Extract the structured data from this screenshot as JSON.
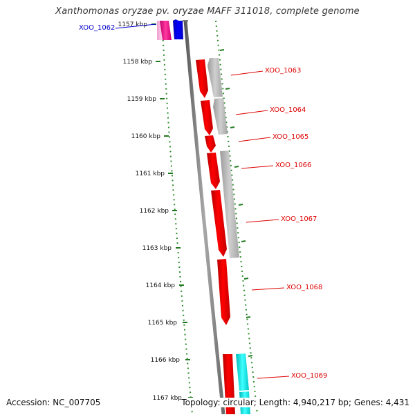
{
  "title": "Xanthomonas oryzae pv. oryzae MAFF 311018, complete genome",
  "ticks": [
    {
      "label": "1157 kbp"
    },
    {
      "label": "1158 kbp"
    },
    {
      "label": "1159 kbp"
    },
    {
      "label": "1160 kbp"
    },
    {
      "label": "1161 kbp"
    },
    {
      "label": "1162 kbp"
    },
    {
      "label": "1163 kbp"
    },
    {
      "label": "1164 kbp"
    },
    {
      "label": "1165 kbp"
    },
    {
      "label": "1166 kbp"
    },
    {
      "label": "1167 kbp"
    }
  ],
  "genes": [
    {
      "label": "XOO_1062",
      "color": "#0000cc"
    },
    {
      "label": "XOO_1063",
      "color": "#dd0000"
    },
    {
      "label": "XOO_1064",
      "color": "#dd0000"
    },
    {
      "label": "XOO_1065",
      "color": "#dd0000"
    },
    {
      "label": "XOO_1066",
      "color": "#dd0000"
    },
    {
      "label": "XOO_1067",
      "color": "#dd0000"
    },
    {
      "label": "XOO_1068",
      "color": "#dd0000"
    },
    {
      "label": "XOO_1069",
      "color": "#dd0000"
    }
  ],
  "colors": {
    "backbone": "#808080",
    "gene_forward": "#ff0000",
    "gene_reverse": "#b3b3b3",
    "gene_blue": "#0000ff",
    "gene_magenta": "#e6007e",
    "gene_cyan": "#00e5e5",
    "tick_marks": "#2e8b2e"
  },
  "footer": {
    "accession": "Accession: NC_007705",
    "topology": "Topology: circular; Length: 4,940,217 bp; Genes: 4,431"
  }
}
